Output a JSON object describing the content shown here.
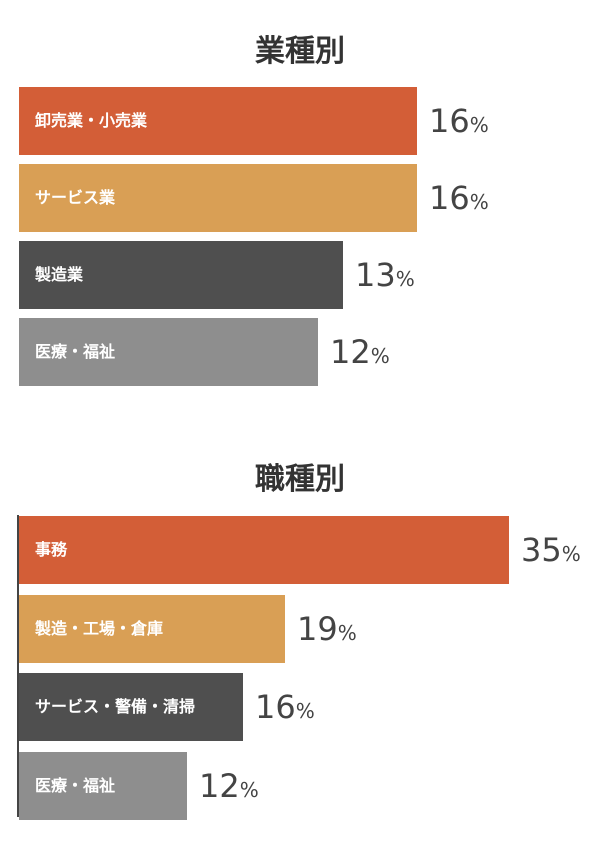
{
  "chart_data": [
    {
      "type": "bar",
      "title": "業種別",
      "orientation": "horizontal",
      "unit": "%",
      "categories": [
        "卸売業・小売業",
        "サービス業",
        "製造業",
        "医療・福祉"
      ],
      "values": [
        16,
        16,
        13,
        12
      ],
      "value_labels": [
        "16",
        "16",
        "13",
        "12"
      ],
      "colors": [
        "#d35e37",
        "#d99f55",
        "#4f4f4f",
        "#8e8e8e"
      ],
      "xlim": [
        0,
        35
      ]
    },
    {
      "type": "bar",
      "title": "職種別",
      "orientation": "horizontal",
      "unit": "%",
      "categories": [
        "事務",
        "製造・工場・倉庫",
        "サービス・警備・清掃",
        "医療・福祉"
      ],
      "values": [
        35,
        19,
        16,
        12
      ],
      "value_labels": [
        "35",
        "19",
        "16",
        "12"
      ],
      "colors": [
        "#d35e37",
        "#d99f55",
        "#4f4f4f",
        "#8e8e8e"
      ],
      "xlim": [
        0,
        35
      ],
      "axis_line": true
    }
  ]
}
